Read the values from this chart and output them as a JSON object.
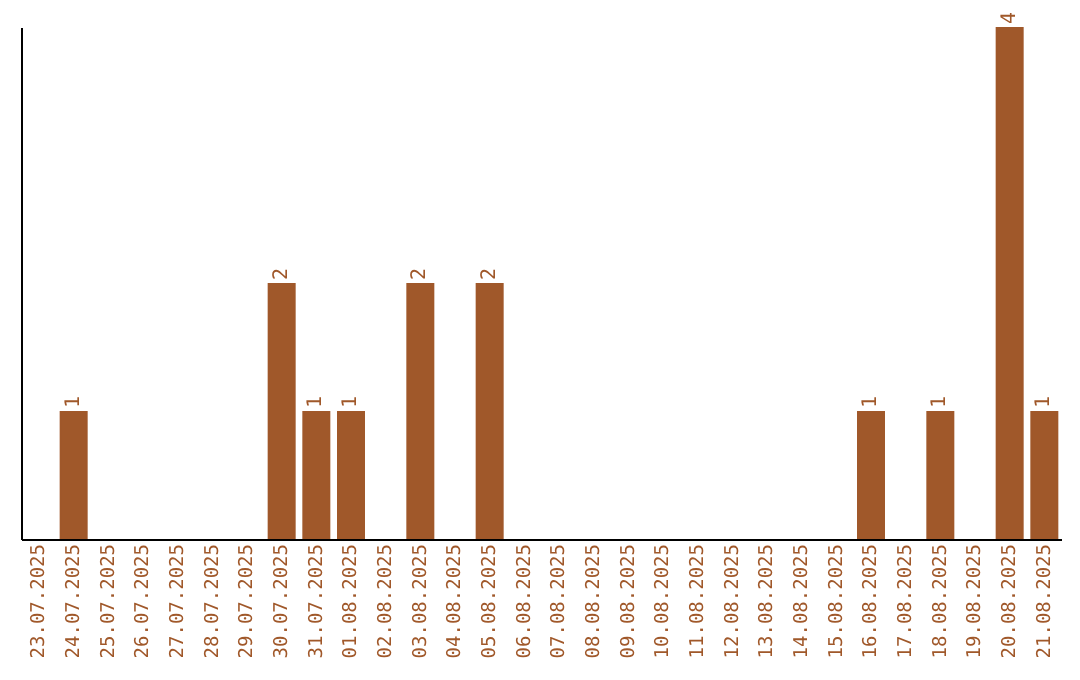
{
  "chart_data": {
    "type": "bar",
    "categories": [
      "23.07.2025",
      "24.07.2025",
      "25.07.2025",
      "26.07.2025",
      "27.07.2025",
      "28.07.2025",
      "29.07.2025",
      "30.07.2025",
      "31.07.2025",
      "01.08.2025",
      "02.08.2025",
      "03.08.2025",
      "04.08.2025",
      "05.08.2025",
      "06.08.2025",
      "07.08.2025",
      "08.08.2025",
      "09.08.2025",
      "10.08.2025",
      "11.08.2025",
      "12.08.2025",
      "13.08.2025",
      "14.08.2025",
      "15.08.2025",
      "16.08.2025",
      "17.08.2025",
      "18.08.2025",
      "19.08.2025",
      "20.08.2025",
      "21.08.2025"
    ],
    "values": [
      0,
      1,
      0,
      0,
      0,
      0,
      0,
      2,
      1,
      1,
      0,
      2,
      0,
      2,
      0,
      0,
      0,
      0,
      0,
      0,
      0,
      0,
      0,
      0,
      1,
      0,
      1,
      0,
      4,
      1
    ],
    "value_labels": [
      null,
      "1",
      null,
      null,
      null,
      null,
      null,
      "2",
      "1",
      "1",
      null,
      "2",
      null,
      "2",
      null,
      null,
      null,
      null,
      null,
      null,
      null,
      null,
      null,
      null,
      "1",
      null,
      "1",
      null,
      "4",
      "1"
    ],
    "color": "#a0582a",
    "grid": false,
    "legend": false
  }
}
